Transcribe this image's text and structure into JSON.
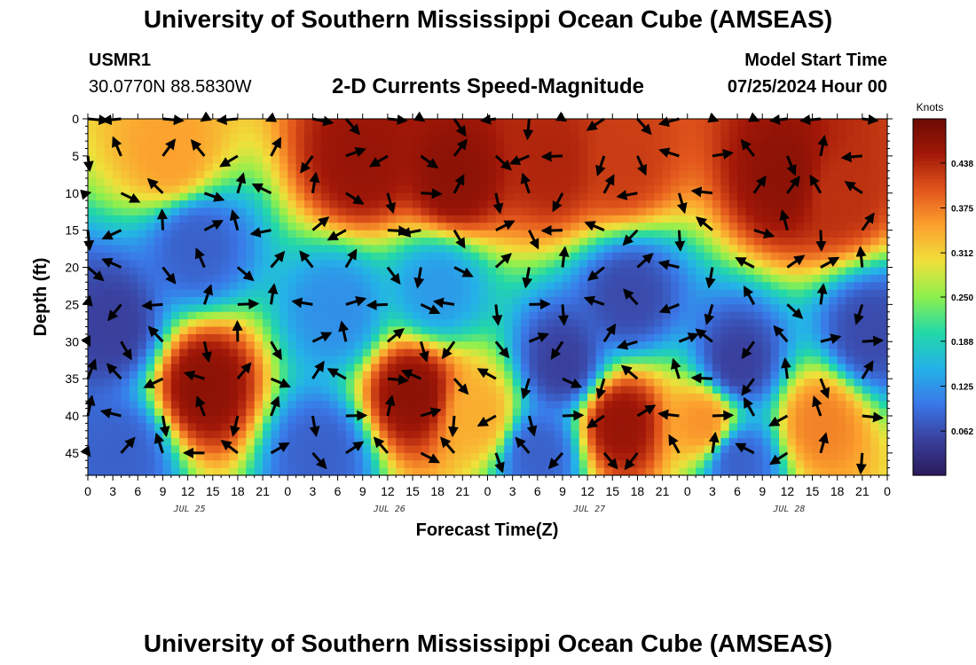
{
  "header": {
    "title_top": "University of Southern Mississippi Ocean Cube (AMSEAS)",
    "title_bottom": "University of Southern Mississippi Ocean Cube (AMSEAS)",
    "station": "USMR1",
    "coords": "30.0770N  88.5830W",
    "model_label": "Model Start Time",
    "model_time": "07/25/2024 Hour 00"
  },
  "chart_data": {
    "type": "heatmap",
    "title": "2-D Currents Speed-Magnitude",
    "xlabel": "Forecast Time(Z)",
    "ylabel": "Depth (ft)",
    "x_range_hours": [
      0,
      96
    ],
    "y_range_ft": [
      0,
      48
    ],
    "x_ticks": [
      "0",
      "3",
      "6",
      "9",
      "12",
      "15",
      "18",
      "21",
      "0",
      "3",
      "6",
      "9",
      "12",
      "15",
      "18",
      "21",
      "0",
      "3",
      "6",
      "9",
      "12",
      "15",
      "18",
      "21",
      "0",
      "3",
      "6",
      "9",
      "12",
      "15",
      "18",
      "21",
      "0"
    ],
    "y_ticks": [
      "0",
      "5",
      "10",
      "15",
      "20",
      "25",
      "30",
      "35",
      "40",
      "45"
    ],
    "date_labels": [
      "JUL 25",
      "JUL 26",
      "JUL 27",
      "JUL 28"
    ],
    "colorbar": {
      "label": "Knots",
      "range": [
        0.0,
        0.5
      ],
      "ticks": [
        "0.438",
        "0.375",
        "0.312",
        "0.250",
        "0.188",
        "0.125",
        "0.062"
      ],
      "colors": [
        "#2b1a5c",
        "#3a3f9c",
        "#3a78e8",
        "#24b2e8",
        "#22d8a8",
        "#8cf04e",
        "#f0e03a",
        "#fca12e",
        "#e2561c",
        "#a21808",
        "#6b0a04"
      ]
    },
    "speed_blobs": [
      {
        "t": 10,
        "d": 5,
        "v": 0.35
      },
      {
        "t": 33,
        "d": 6,
        "v": 0.46
      },
      {
        "t": 44,
        "d": 8,
        "v": 0.47
      },
      {
        "t": 56,
        "d": 6,
        "v": 0.44
      },
      {
        "t": 64,
        "d": 6,
        "v": 0.42
      },
      {
        "t": 84,
        "d": 8,
        "v": 0.47
      },
      {
        "t": 90,
        "d": 10,
        "v": 0.43
      },
      {
        "t": 14,
        "d": 36,
        "v": 0.47
      },
      {
        "t": 39,
        "d": 37,
        "v": 0.47
      },
      {
        "t": 47,
        "d": 40,
        "v": 0.34
      },
      {
        "t": 64,
        "d": 41,
        "v": 0.46
      },
      {
        "t": 74,
        "d": 41,
        "v": 0.36
      },
      {
        "t": 88,
        "d": 41,
        "v": 0.37
      },
      {
        "t": 3,
        "d": 28,
        "v": 0.05
      },
      {
        "t": 13,
        "d": 17,
        "v": 0.08
      },
      {
        "t": 30,
        "d": 26,
        "v": 0.12
      },
      {
        "t": 42,
        "d": 23,
        "v": 0.13
      },
      {
        "t": 57,
        "d": 33,
        "v": 0.05
      },
      {
        "t": 65,
        "d": 24,
        "v": 0.06
      },
      {
        "t": 78,
        "d": 33,
        "v": 0.05
      },
      {
        "t": 94,
        "d": 29,
        "v": 0.06
      },
      {
        "t": 4,
        "d": 45,
        "v": 0.08
      },
      {
        "t": 28,
        "d": 45,
        "v": 0.08
      },
      {
        "t": 54,
        "d": 45,
        "v": 0.08
      },
      {
        "t": 78,
        "d": 46,
        "v": 0.08
      }
    ],
    "vector_times": [
      0,
      4,
      9,
      14,
      18,
      22,
      27,
      31,
      36,
      40,
      44,
      49,
      53,
      57,
      62,
      66,
      71,
      75,
      80,
      84,
      88,
      93
    ],
    "vector_depths": [
      0,
      5,
      10,
      15,
      20,
      25,
      30,
      35,
      40,
      45
    ]
  }
}
